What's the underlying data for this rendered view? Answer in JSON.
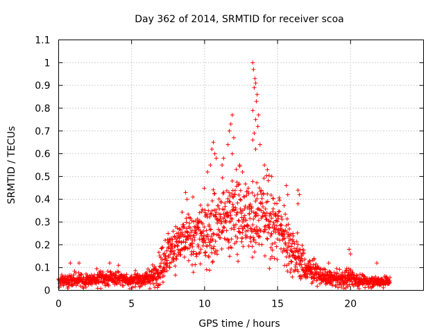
{
  "chart_data": {
    "type": "scatter",
    "title": "Day 362 of 2014, SRMTID for receiver scoa",
    "xlabel": "GPS time / hours",
    "ylabel": "SRMTID / TECUs",
    "xlim": [
      0,
      25
    ],
    "ylim": [
      0,
      1.1
    ],
    "grid": true,
    "marker": "+",
    "series_color": "#ff0000",
    "xticks": [
      "0",
      "5",
      "10",
      "15",
      "20"
    ],
    "xtick_values": [
      0,
      5,
      10,
      15,
      20
    ],
    "yticks": [
      "0",
      "0.1",
      "0.2",
      "0.3",
      "0.4",
      "0.5",
      "0.6",
      "0.7",
      "0.8",
      "0.9",
      "1",
      "1.1"
    ],
    "ytick_values": [
      0,
      0.1,
      0.2,
      0.3,
      0.4,
      0.5,
      0.6,
      0.7,
      0.8,
      0.9,
      1.0,
      1.1
    ],
    "time_range_hours": [
      0,
      22.7
    ],
    "envelope": {
      "hours": [
        0,
        1,
        2,
        3,
        4,
        5,
        6,
        6.5,
        7,
        7.5,
        8,
        8.5,
        9,
        9.5,
        10,
        10.5,
        11,
        11.5,
        12,
        12.5,
        13,
        13.5,
        14,
        14.5,
        15,
        15.5,
        16,
        16.5,
        17,
        17.5,
        18,
        18.5,
        19,
        19.5,
        20,
        20.5,
        21,
        21.5,
        22,
        22.7
      ],
      "median": [
        0.04,
        0.045,
        0.045,
        0.05,
        0.055,
        0.045,
        0.05,
        0.06,
        0.1,
        0.16,
        0.2,
        0.22,
        0.22,
        0.24,
        0.25,
        0.28,
        0.3,
        0.32,
        0.34,
        0.33,
        0.32,
        0.34,
        0.33,
        0.3,
        0.28,
        0.24,
        0.18,
        0.13,
        0.09,
        0.08,
        0.06,
        0.05,
        0.05,
        0.05,
        0.06,
        0.045,
        0.04,
        0.04,
        0.04,
        0.04
      ],
      "spread": [
        0.02,
        0.025,
        0.025,
        0.03,
        0.03,
        0.025,
        0.03,
        0.04,
        0.06,
        0.08,
        0.1,
        0.11,
        0.12,
        0.12,
        0.13,
        0.15,
        0.16,
        0.15,
        0.14,
        0.15,
        0.15,
        0.15,
        0.14,
        0.14,
        0.13,
        0.12,
        0.1,
        0.08,
        0.05,
        0.04,
        0.03,
        0.03,
        0.03,
        0.03,
        0.04,
        0.025,
        0.02,
        0.02,
        0.02,
        0.02
      ]
    },
    "spikes": [
      {
        "x": 13.3,
        "y": 1.0
      },
      {
        "x": 13.35,
        "y": 0.97
      },
      {
        "x": 13.45,
        "y": 0.93
      },
      {
        "x": 13.5,
        "y": 0.91
      },
      {
        "x": 13.4,
        "y": 0.89
      },
      {
        "x": 13.6,
        "y": 0.86
      },
      {
        "x": 13.55,
        "y": 0.83
      },
      {
        "x": 13.3,
        "y": 0.79
      },
      {
        "x": 13.7,
        "y": 0.77
      },
      {
        "x": 13.5,
        "y": 0.75
      },
      {
        "x": 13.65,
        "y": 0.72
      },
      {
        "x": 13.4,
        "y": 0.69
      },
      {
        "x": 13.3,
        "y": 0.66
      },
      {
        "x": 13.8,
        "y": 0.64
      },
      {
        "x": 13.5,
        "y": 0.62
      },
      {
        "x": 11.9,
        "y": 0.77
      },
      {
        "x": 11.8,
        "y": 0.73
      },
      {
        "x": 11.7,
        "y": 0.7
      },
      {
        "x": 12.0,
        "y": 0.67
      },
      {
        "x": 11.6,
        "y": 0.64
      },
      {
        "x": 11.9,
        "y": 0.6
      },
      {
        "x": 10.6,
        "y": 0.65
      },
      {
        "x": 10.5,
        "y": 0.62
      },
      {
        "x": 10.7,
        "y": 0.6
      },
      {
        "x": 10.8,
        "y": 0.58
      },
      {
        "x": 10.4,
        "y": 0.55
      },
      {
        "x": 10.2,
        "y": 0.52
      },
      {
        "x": 11.3,
        "y": 0.58
      },
      {
        "x": 11.2,
        "y": 0.55
      },
      {
        "x": 12.4,
        "y": 0.55
      },
      {
        "x": 12.6,
        "y": 0.52
      },
      {
        "x": 14.1,
        "y": 0.55
      },
      {
        "x": 14.3,
        "y": 0.53
      },
      {
        "x": 14.6,
        "y": 0.5
      },
      {
        "x": 15.6,
        "y": 0.46
      },
      {
        "x": 15.7,
        "y": 0.42
      },
      {
        "x": 16.4,
        "y": 0.44
      },
      {
        "x": 16.5,
        "y": 0.42
      },
      {
        "x": 16.4,
        "y": 0.38
      },
      {
        "x": 8.7,
        "y": 0.43
      },
      {
        "x": 8.8,
        "y": 0.4
      },
      {
        "x": 9.2,
        "y": 0.41
      },
      {
        "x": 7.5,
        "y": 0.25
      },
      {
        "x": 7.3,
        "y": 0.22
      },
      {
        "x": 19.9,
        "y": 0.18
      },
      {
        "x": 20.0,
        "y": 0.16
      },
      {
        "x": 0.8,
        "y": 0.12
      },
      {
        "x": 1.4,
        "y": 0.12
      },
      {
        "x": 3.5,
        "y": 0.12
      },
      {
        "x": 4.1,
        "y": 0.11
      },
      {
        "x": 21.8,
        "y": 0.12
      },
      {
        "x": 18.5,
        "y": 0.12
      },
      {
        "x": 17.2,
        "y": 0.13
      },
      {
        "x": 17.5,
        "y": 0.14
      }
    ]
  }
}
